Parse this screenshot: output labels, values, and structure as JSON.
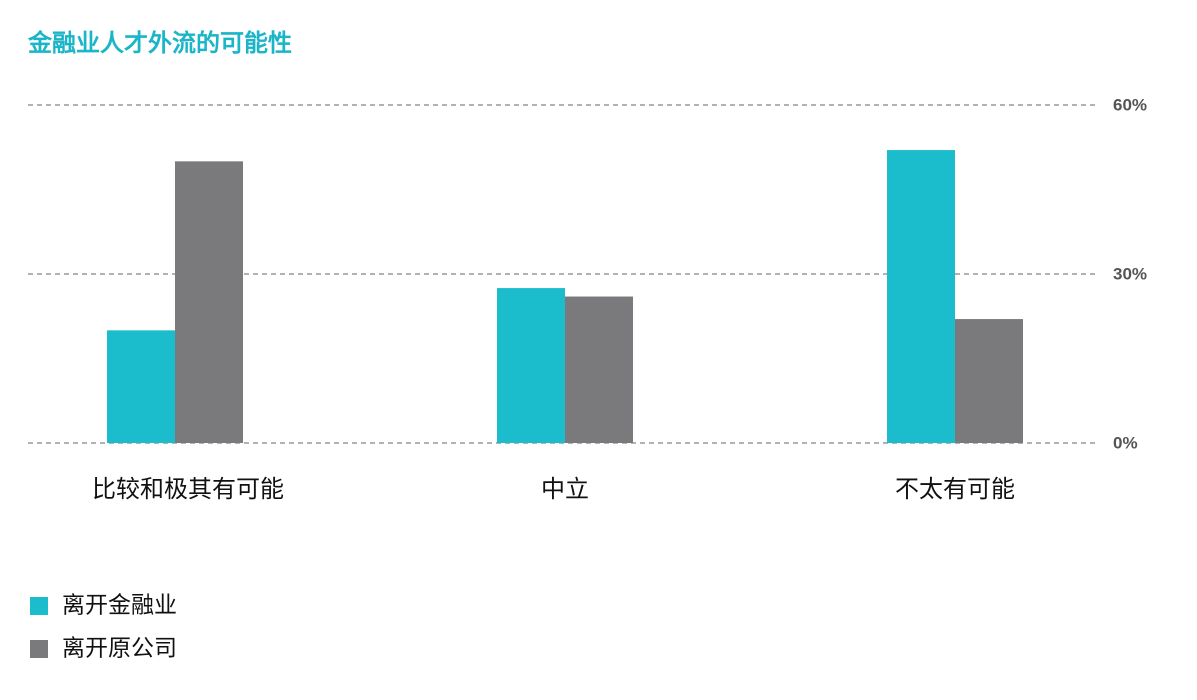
{
  "chart_data": {
    "type": "bar",
    "title": "金融业人才外流的可能性",
    "categories": [
      "比较和极其有可能",
      "中立",
      "不太有可能"
    ],
    "series": [
      {
        "name": "离开金融业",
        "color": "#1bbccc",
        "values": [
          20,
          27.5,
          52
        ]
      },
      {
        "name": "离开原公司",
        "color": "#7a7a7c",
        "values": [
          50,
          26,
          22
        ]
      }
    ],
    "ylim": [
      0,
      60
    ],
    "yticks": [
      {
        "value": 0,
        "label": "0%"
      },
      {
        "value": 30,
        "label": "30%"
      },
      {
        "value": 60,
        "label": "60%"
      }
    ],
    "grid": true
  }
}
